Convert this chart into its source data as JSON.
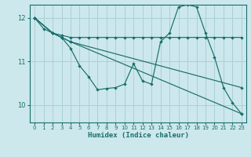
{
  "title": "",
  "xlabel": "Humidex (Indice chaleur)",
  "background_color": "#cce8ec",
  "grid_color": "#aad0d8",
  "line_color": "#1a6e6a",
  "xlim": [
    -0.5,
    23.5
  ],
  "ylim": [
    9.6,
    12.3
  ],
  "yticks": [
    10,
    11,
    12
  ],
  "xticks": [
    0,
    1,
    2,
    3,
    4,
    5,
    6,
    7,
    8,
    9,
    10,
    11,
    12,
    13,
    14,
    15,
    16,
    17,
    18,
    19,
    20,
    21,
    22,
    23
  ],
  "series": [
    {
      "x": [
        0,
        1,
        2,
        3,
        4,
        5,
        6,
        7,
        8,
        9,
        10,
        11,
        12,
        13,
        14,
        15,
        16,
        17,
        18,
        19,
        20,
        21,
        22,
        23
      ],
      "y": [
        12.0,
        11.75,
        11.65,
        11.55,
        11.3,
        10.9,
        10.65,
        10.35,
        10.38,
        10.4,
        10.48,
        10.95,
        10.55,
        10.48,
        11.45,
        11.65,
        12.25,
        12.3,
        12.25,
        11.65,
        11.1,
        10.4,
        10.05,
        9.8
      ]
    },
    {
      "x": [
        0,
        2,
        3,
        4,
        5,
        6,
        7,
        8,
        9,
        10,
        11,
        12,
        13,
        14,
        15,
        16,
        17,
        18,
        19,
        20,
        21,
        22,
        23
      ],
      "y": [
        12.0,
        11.65,
        11.6,
        11.55,
        11.55,
        11.55,
        11.55,
        11.55,
        11.55,
        11.55,
        11.55,
        11.55,
        11.55,
        11.55,
        11.55,
        11.55,
        11.55,
        11.55,
        11.55,
        11.55,
        11.55,
        11.55,
        11.55
      ]
    },
    {
      "x": [
        0,
        2,
        3,
        4,
        23
      ],
      "y": [
        12.0,
        11.65,
        11.55,
        11.45,
        9.8
      ]
    },
    {
      "x": [
        0,
        2,
        3,
        4,
        23
      ],
      "y": [
        12.0,
        11.65,
        11.55,
        11.45,
        10.4
      ]
    }
  ]
}
